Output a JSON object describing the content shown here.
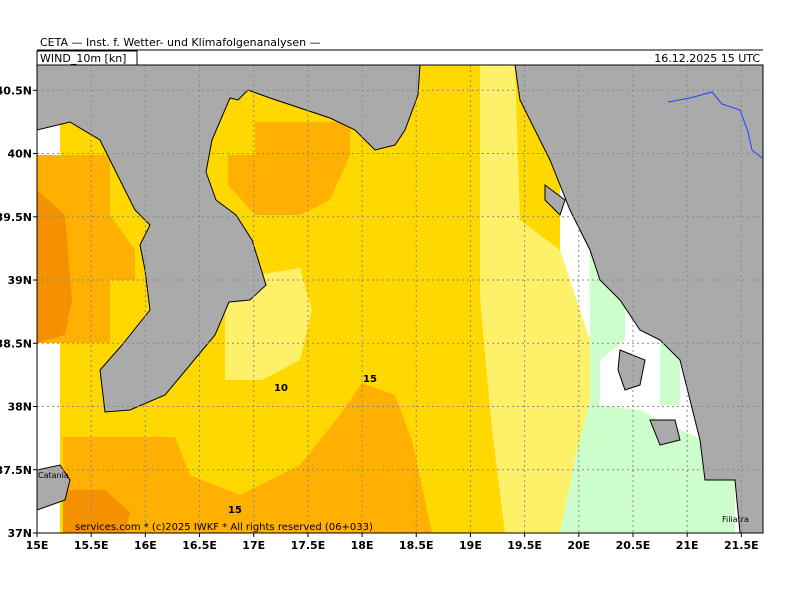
{
  "header": {
    "institute": "CETA — Inst. f. Wetter- und Klimafolgenanalysen —",
    "variable": "WIND_10m [kn]",
    "valid_time": "16.12.2025 15 UTC"
  },
  "map": {
    "xlim": [
      15,
      21.7
    ],
    "ylim": [
      37,
      40.7
    ],
    "xticks": [
      {
        "value": 15,
        "label": "15E"
      },
      {
        "value": 15.5,
        "label": "15.5E"
      },
      {
        "value": 16,
        "label": "16E"
      },
      {
        "value": 16.5,
        "label": "16.5E"
      },
      {
        "value": 17,
        "label": "17E"
      },
      {
        "value": 17.5,
        "label": "17.5E"
      },
      {
        "value": 18,
        "label": "18E"
      },
      {
        "value": 18.5,
        "label": "18.5E"
      },
      {
        "value": 19,
        "label": "19E"
      },
      {
        "value": 19.5,
        "label": "19.5E"
      },
      {
        "value": 20,
        "label": "20E"
      },
      {
        "value": 20.5,
        "label": "20.5E"
      },
      {
        "value": 21,
        "label": "21E"
      },
      {
        "value": 21.5,
        "label": "21.5E"
      }
    ],
    "yticks": [
      {
        "value": 37,
        "label": "37N"
      },
      {
        "value": 37.5,
        "label": "37.5N"
      },
      {
        "value": 38,
        "label": "38N"
      },
      {
        "value": 38.5,
        "label": "38.5N"
      },
      {
        "value": 39,
        "label": "39N"
      },
      {
        "value": 39.5,
        "label": "39.5N"
      },
      {
        "value": 40,
        "label": "40N"
      },
      {
        "value": 40.5,
        "label": "40.5N"
      }
    ],
    "contour_labels": [
      "10",
      "15",
      "15"
    ],
    "places": [
      "Catania",
      "Filiatra"
    ],
    "copyright": "services.com * (c)2025 IWKF * All rights reserved (06+033)"
  }
}
